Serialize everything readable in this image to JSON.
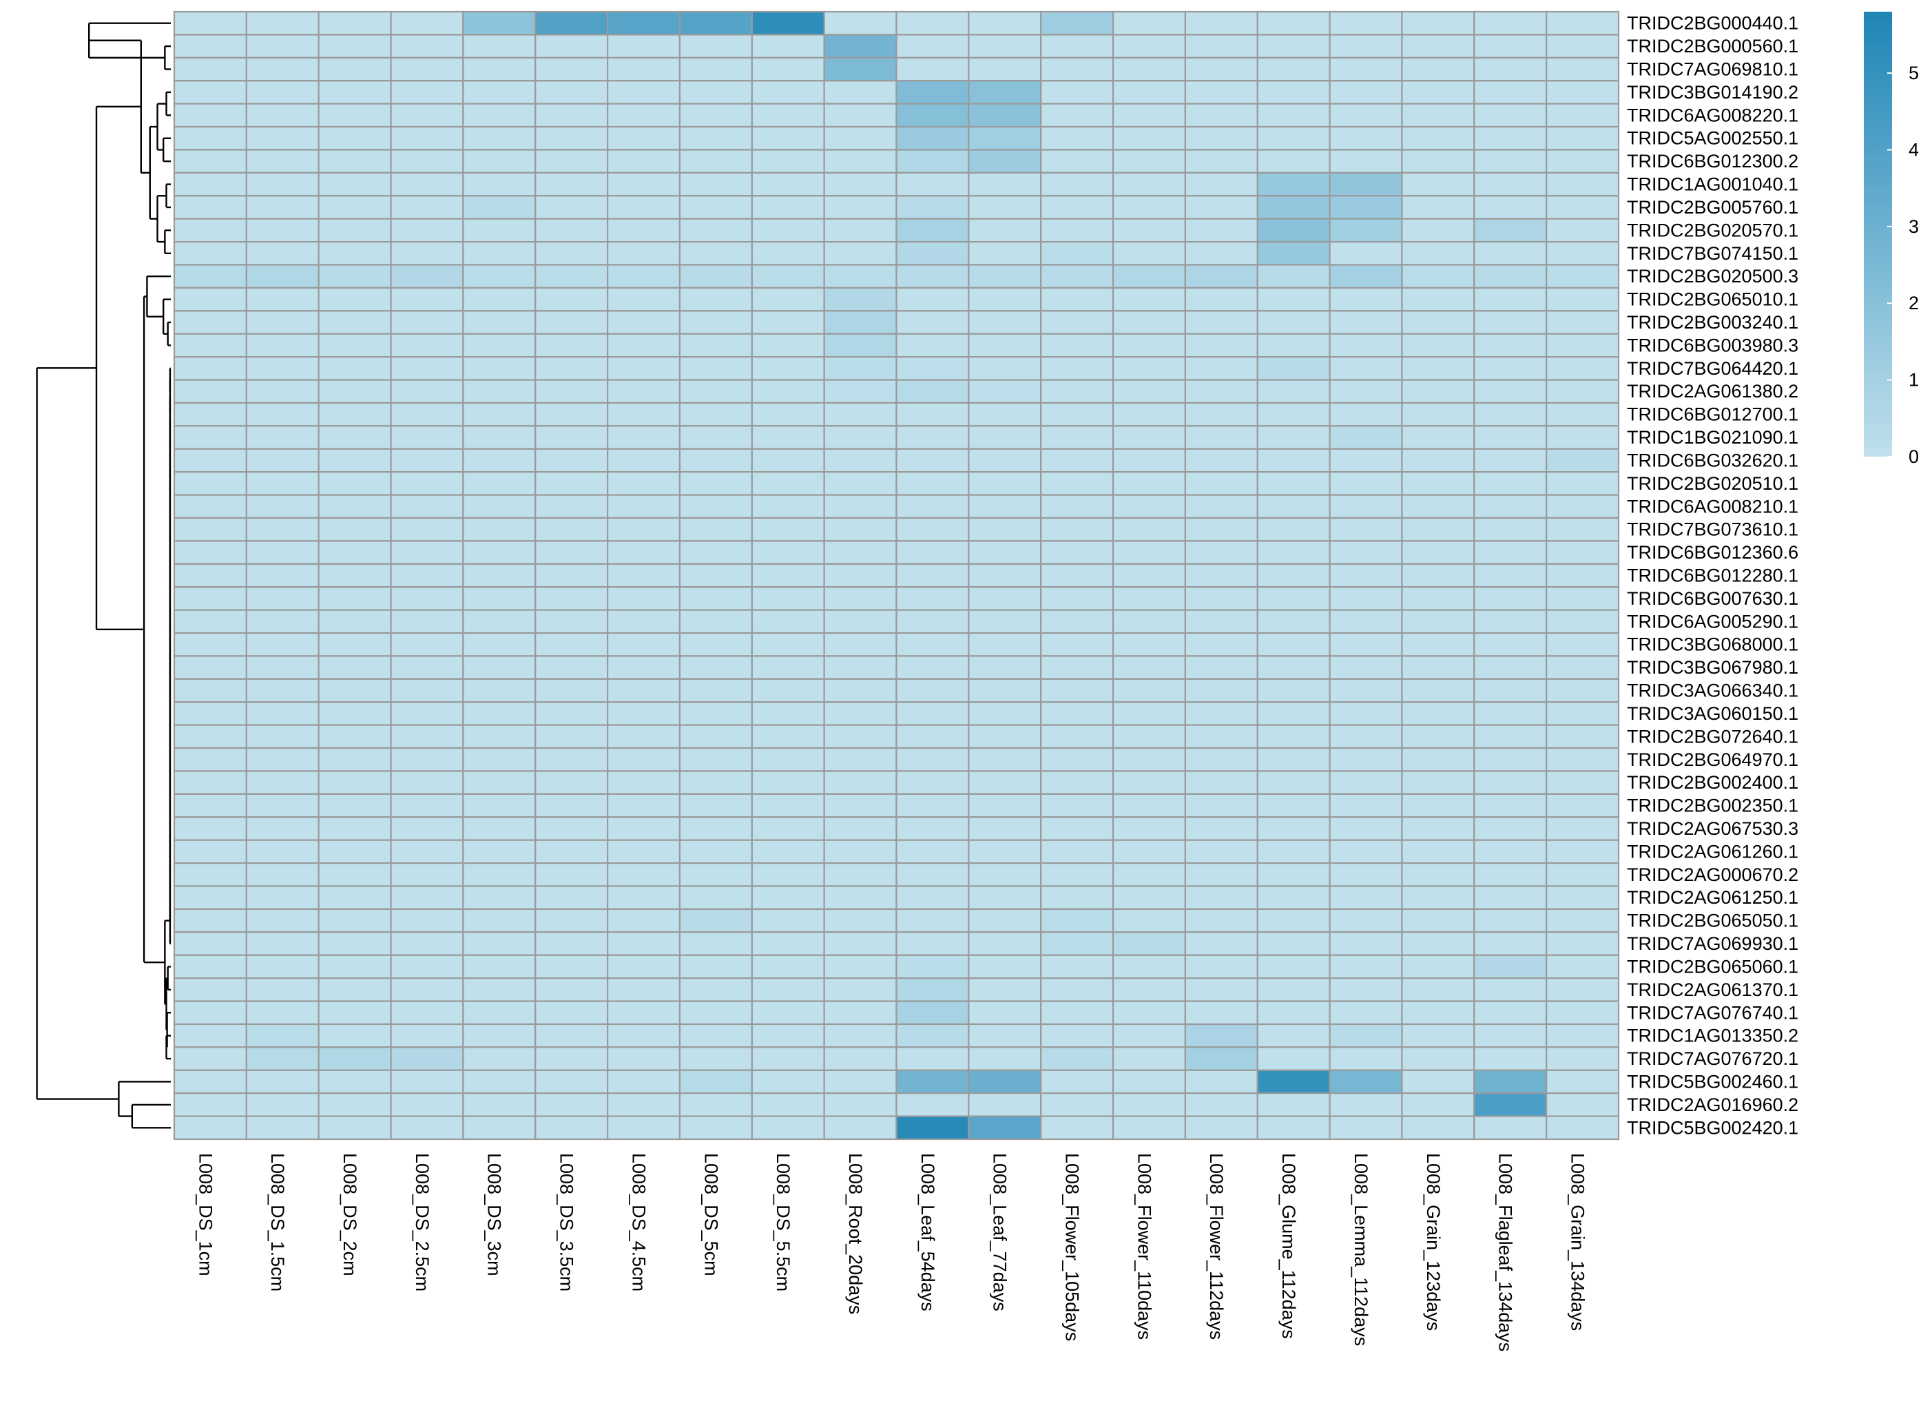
{
  "chart_data": {
    "type": "heatmap",
    "title": "",
    "xlabel": "",
    "ylabel": "",
    "color_scale": {
      "low": "#c0e0ec",
      "high": "#1f85b6",
      "range": [
        0,
        5.8
      ],
      "ticks": [
        "0",
        "1",
        "2",
        "3",
        "4",
        "5"
      ],
      "tick_values": [
        0,
        1,
        2,
        3,
        4,
        5
      ]
    },
    "columns": [
      "L008_DS_1cm",
      "L008_DS_1.5cm",
      "L008_DS_2cm",
      "L008_DS_2.5cm",
      "L008_DS_3cm",
      "L008_DS_3.5cm",
      "L008_DS_4.5cm",
      "L008_DS_5cm",
      "L008_DS_5.5cm",
      "L008_Root_20days",
      "L008_Leaf_54days",
      "L008_Leaf_77days",
      "L008_Flower_105days",
      "L008_Flower_110days",
      "L008_Flower_112days",
      "L008_Glume_112days",
      "L008_Lemma_112days",
      "L008_Grain_123days",
      "L008_Flagleaf_134days",
      "L008_Grain_134days"
    ],
    "rows": [
      "TRIDC2BG000440.1",
      "TRIDC2BG000560.1",
      "TRIDC7AG069810.1",
      "TRIDC3BG014190.2",
      "TRIDC6AG008220.1",
      "TRIDC5AG002550.1",
      "TRIDC6BG012300.2",
      "TRIDC1AG001040.1",
      "TRIDC2BG005760.1",
      "TRIDC2BG020570.1",
      "TRIDC7BG074150.1",
      "TRIDC2BG020500.3",
      "TRIDC2BG065010.1",
      "TRIDC2BG003240.1",
      "TRIDC6BG003980.3",
      "TRIDC7BG064420.1",
      "TRIDC2AG061380.2",
      "TRIDC6BG012700.1",
      "TRIDC1BG021090.1",
      "TRIDC6BG032620.1",
      "TRIDC2BG020510.1",
      "TRIDC6AG008210.1",
      "TRIDC7BG073610.1",
      "TRIDC6BG012360.6",
      "TRIDC6BG012280.1",
      "TRIDC6BG007630.1",
      "TRIDC6AG005290.1",
      "TRIDC3BG068000.1",
      "TRIDC3BG067980.1",
      "TRIDC3AG066340.1",
      "TRIDC3AG060150.1",
      "TRIDC2BG072640.1",
      "TRIDC2BG064970.1",
      "TRIDC2BG002400.1",
      "TRIDC2BG002350.1",
      "TRIDC2AG067530.3",
      "TRIDC2AG061260.1",
      "TRIDC2AG000670.2",
      "TRIDC2AG061250.1",
      "TRIDC2BG065050.1",
      "TRIDC7AG069930.1",
      "TRIDC2BG065060.1",
      "TRIDC2AG061370.1",
      "TRIDC7AG076740.1",
      "TRIDC1AG013350.2",
      "TRIDC7AG076720.1",
      "TRIDC5BG002460.1",
      "TRIDC2AG016960.2",
      "TRIDC5BG002420.1"
    ],
    "values": [
      [
        0,
        0,
        0,
        0,
        1.8,
        4.0,
        3.8,
        3.9,
        5.3,
        0,
        0,
        0,
        1.2,
        0,
        0,
        0,
        0,
        0,
        0,
        0
      ],
      [
        0,
        0,
        0,
        0,
        0,
        0,
        0,
        0,
        0,
        2.8,
        0,
        0,
        0,
        0,
        0,
        0,
        0,
        0,
        0,
        0
      ],
      [
        0,
        0,
        0,
        0,
        0,
        0,
        0,
        0,
        0,
        2.4,
        0,
        0,
        0,
        0,
        0,
        0,
        0,
        0,
        0,
        0
      ],
      [
        0,
        0,
        0,
        0,
        0,
        0,
        0,
        0,
        0,
        0,
        2.3,
        2.0,
        0,
        0,
        0,
        0,
        0,
        0,
        0,
        0
      ],
      [
        0,
        0,
        0,
        0,
        0,
        0,
        0,
        0,
        0,
        0,
        2.1,
        1.9,
        0,
        0,
        0,
        0,
        0,
        0,
        0,
        0
      ],
      [
        0,
        0,
        0,
        0,
        0,
        0,
        0,
        0,
        0,
        0,
        1.4,
        1.1,
        0,
        0,
        0,
        0,
        0,
        0,
        0,
        0
      ],
      [
        0,
        0,
        0,
        0,
        0,
        0,
        0,
        0,
        0,
        0,
        0.6,
        1.3,
        0,
        0,
        0,
        0,
        0,
        0,
        0,
        0
      ],
      [
        0,
        0,
        0,
        0,
        0,
        0,
        0,
        0,
        0,
        0,
        0,
        0,
        0,
        0,
        0,
        1.5,
        1.7,
        0,
        0,
        0
      ],
      [
        0,
        0,
        0,
        0,
        0.3,
        0,
        0,
        0,
        0,
        0,
        0.3,
        0,
        0,
        0,
        0,
        1.6,
        1.4,
        0,
        0,
        0
      ],
      [
        0,
        0,
        0,
        0,
        0,
        0,
        0,
        0,
        0,
        0,
        0.9,
        0,
        0,
        0,
        0,
        2.0,
        1.1,
        0,
        0.7,
        0
      ],
      [
        0,
        0,
        0,
        0,
        0,
        0,
        0,
        0,
        0,
        0,
        0.5,
        0,
        0.2,
        0,
        0,
        1.5,
        0,
        0,
        0,
        0
      ],
      [
        0.4,
        0.6,
        0.3,
        0.5,
        0.2,
        0.2,
        0.2,
        0.3,
        0.2,
        0.2,
        0.3,
        0.3,
        0.3,
        0.6,
        0.7,
        0.3,
        1.0,
        0.2,
        0.3,
        0.2
      ],
      [
        0,
        0,
        0,
        0,
        0,
        0,
        0,
        0,
        0,
        0.5,
        0,
        0,
        0,
        0,
        0,
        0,
        0,
        0,
        0,
        0
      ],
      [
        0,
        0,
        0,
        0,
        0,
        0,
        0,
        0,
        0,
        0.7,
        0,
        0,
        0,
        0,
        0,
        0,
        0,
        0,
        0,
        0
      ],
      [
        0,
        0,
        0,
        0,
        0,
        0,
        0,
        0,
        0,
        0.6,
        0,
        0,
        0,
        0,
        0,
        0,
        0,
        0,
        0,
        0
      ],
      [
        0,
        0,
        0,
        0,
        0,
        0,
        0,
        0,
        0,
        0.2,
        0.1,
        0,
        0,
        0,
        0,
        0.3,
        0,
        0,
        0,
        0
      ],
      [
        0,
        0,
        0,
        0,
        0,
        0,
        0,
        0,
        0,
        0.1,
        0.4,
        0.1,
        0,
        0,
        0,
        0,
        0,
        0,
        0,
        0
      ],
      [
        0,
        0,
        0,
        0,
        0,
        0,
        0,
        0,
        0,
        0,
        0,
        0,
        0,
        0,
        0,
        0,
        0,
        0,
        0,
        0
      ],
      [
        0,
        0,
        0,
        0,
        0,
        0,
        0,
        0,
        0,
        0,
        0,
        0,
        0,
        0,
        0,
        0,
        0.3,
        0,
        0,
        0
      ],
      [
        0,
        0,
        0,
        0,
        0,
        0,
        0,
        0,
        0,
        0,
        0,
        0,
        0,
        0,
        0,
        0,
        0,
        0,
        0,
        0.3
      ],
      [
        0,
        0,
        0,
        0,
        0,
        0,
        0,
        0,
        0,
        0,
        0,
        0,
        0,
        0,
        0,
        0,
        0,
        0,
        0,
        0
      ],
      [
        0,
        0,
        0,
        0,
        0,
        0,
        0,
        0,
        0,
        0,
        0,
        0,
        0,
        0,
        0,
        0,
        0,
        0,
        0,
        0
      ],
      [
        0,
        0,
        0,
        0,
        0,
        0,
        0,
        0,
        0,
        0,
        0,
        0,
        0,
        0,
        0,
        0,
        0,
        0,
        0,
        0
      ],
      [
        0,
        0,
        0,
        0,
        0,
        0,
        0,
        0,
        0,
        0,
        0,
        0,
        0,
        0,
        0,
        0,
        0,
        0,
        0,
        0
      ],
      [
        0,
        0,
        0,
        0,
        0,
        0,
        0,
        0,
        0,
        0,
        0,
        0,
        0,
        0,
        0,
        0,
        0,
        0,
        0,
        0
      ],
      [
        0,
        0,
        0,
        0,
        0,
        0,
        0,
        0,
        0,
        0,
        0,
        0,
        0,
        0,
        0,
        0,
        0,
        0,
        0,
        0
      ],
      [
        0,
        0,
        0,
        0,
        0,
        0,
        0,
        0,
        0,
        0,
        0,
        0,
        0,
        0,
        0,
        0,
        0,
        0,
        0,
        0
      ],
      [
        0,
        0,
        0,
        0,
        0,
        0,
        0,
        0,
        0,
        0,
        0,
        0,
        0,
        0,
        0,
        0,
        0,
        0,
        0,
        0
      ],
      [
        0,
        0,
        0,
        0,
        0,
        0,
        0,
        0,
        0,
        0,
        0,
        0,
        0,
        0,
        0,
        0,
        0,
        0,
        0,
        0
      ],
      [
        0,
        0,
        0,
        0,
        0,
        0,
        0,
        0,
        0,
        0,
        0,
        0,
        0,
        0,
        0,
        0,
        0,
        0,
        0,
        0
      ],
      [
        0,
        0,
        0,
        0,
        0,
        0,
        0,
        0,
        0,
        0,
        0,
        0,
        0,
        0,
        0,
        0,
        0,
        0,
        0,
        0
      ],
      [
        0,
        0,
        0,
        0,
        0,
        0,
        0,
        0,
        0,
        0,
        0,
        0,
        0,
        0,
        0,
        0,
        0,
        0,
        0,
        0
      ],
      [
        0,
        0,
        0,
        0,
        0,
        0,
        0,
        0,
        0,
        0,
        0,
        0,
        0,
        0,
        0,
        0,
        0,
        0,
        0,
        0
      ],
      [
        0,
        0,
        0,
        0,
        0,
        0,
        0,
        0,
        0,
        0,
        0,
        0,
        0,
        0,
        0,
        0,
        0,
        0,
        0,
        0
      ],
      [
        0,
        0,
        0,
        0,
        0,
        0,
        0,
        0,
        0,
        0,
        0,
        0,
        0,
        0,
        0,
        0,
        0,
        0,
        0,
        0
      ],
      [
        0,
        0,
        0,
        0,
        0,
        0,
        0,
        0,
        0,
        0,
        0,
        0,
        0,
        0,
        0,
        0,
        0,
        0,
        0,
        0
      ],
      [
        0,
        0,
        0,
        0,
        0,
        0,
        0,
        0,
        0,
        0,
        0,
        0,
        0,
        0,
        0,
        0,
        0,
        0,
        0,
        0
      ],
      [
        0,
        0,
        0,
        0,
        0,
        0,
        0,
        0,
        0,
        0,
        0,
        0,
        0,
        0,
        0,
        0,
        0,
        0,
        0,
        0
      ],
      [
        0,
        0,
        0,
        0,
        0,
        0,
        0,
        0,
        0,
        0,
        0,
        0,
        0,
        0,
        0,
        0,
        0,
        0,
        0,
        0
      ],
      [
        0,
        0,
        0,
        0,
        0,
        0,
        0,
        0.3,
        0,
        0,
        0,
        0,
        0.2,
        0,
        0,
        0,
        0,
        0,
        0,
        0
      ],
      [
        0,
        0,
        0,
        0,
        0,
        0,
        0,
        0,
        0,
        0,
        0,
        0,
        0.2,
        0.4,
        0,
        0,
        0,
        0,
        0,
        0
      ],
      [
        0,
        0,
        0,
        0,
        0,
        0,
        0,
        0,
        0,
        0,
        0.2,
        0,
        0,
        0,
        0,
        0,
        0,
        0,
        0.5,
        0
      ],
      [
        0,
        0,
        0,
        0,
        0,
        0,
        0,
        0,
        0,
        0,
        0.6,
        0,
        0,
        0,
        0,
        0,
        0,
        0,
        0,
        0
      ],
      [
        0,
        0,
        0,
        0,
        0,
        0,
        0,
        0,
        0,
        0,
        0.9,
        0,
        0,
        0,
        0,
        0,
        0,
        0,
        0,
        0
      ],
      [
        0,
        0.2,
        0,
        0,
        0,
        0,
        0,
        0,
        0,
        0,
        0.3,
        0,
        0,
        0,
        0.8,
        0,
        0.3,
        0,
        0,
        0
      ],
      [
        0,
        0.4,
        0.6,
        0.5,
        0,
        0,
        0,
        0,
        0,
        0,
        0,
        0,
        0.3,
        0,
        1.0,
        0,
        0,
        0,
        0,
        0
      ],
      [
        0,
        0,
        0,
        0,
        0,
        0,
        0,
        0.4,
        0,
        0,
        2.8,
        3.1,
        0,
        0,
        0,
        5.0,
        2.6,
        0,
        2.9,
        0
      ],
      [
        0,
        0,
        0,
        0,
        0,
        0,
        0,
        0,
        0,
        0,
        0,
        0,
        0,
        0,
        0,
        0,
        0,
        0,
        4.2,
        0
      ],
      [
        0,
        0,
        0,
        0,
        0,
        0,
        0,
        0,
        0,
        0,
        5.5,
        3.7,
        0,
        0,
        0,
        0,
        0,
        0,
        0,
        0
      ]
    ],
    "row_dendrogram": true,
    "legend_placement": "right"
  }
}
